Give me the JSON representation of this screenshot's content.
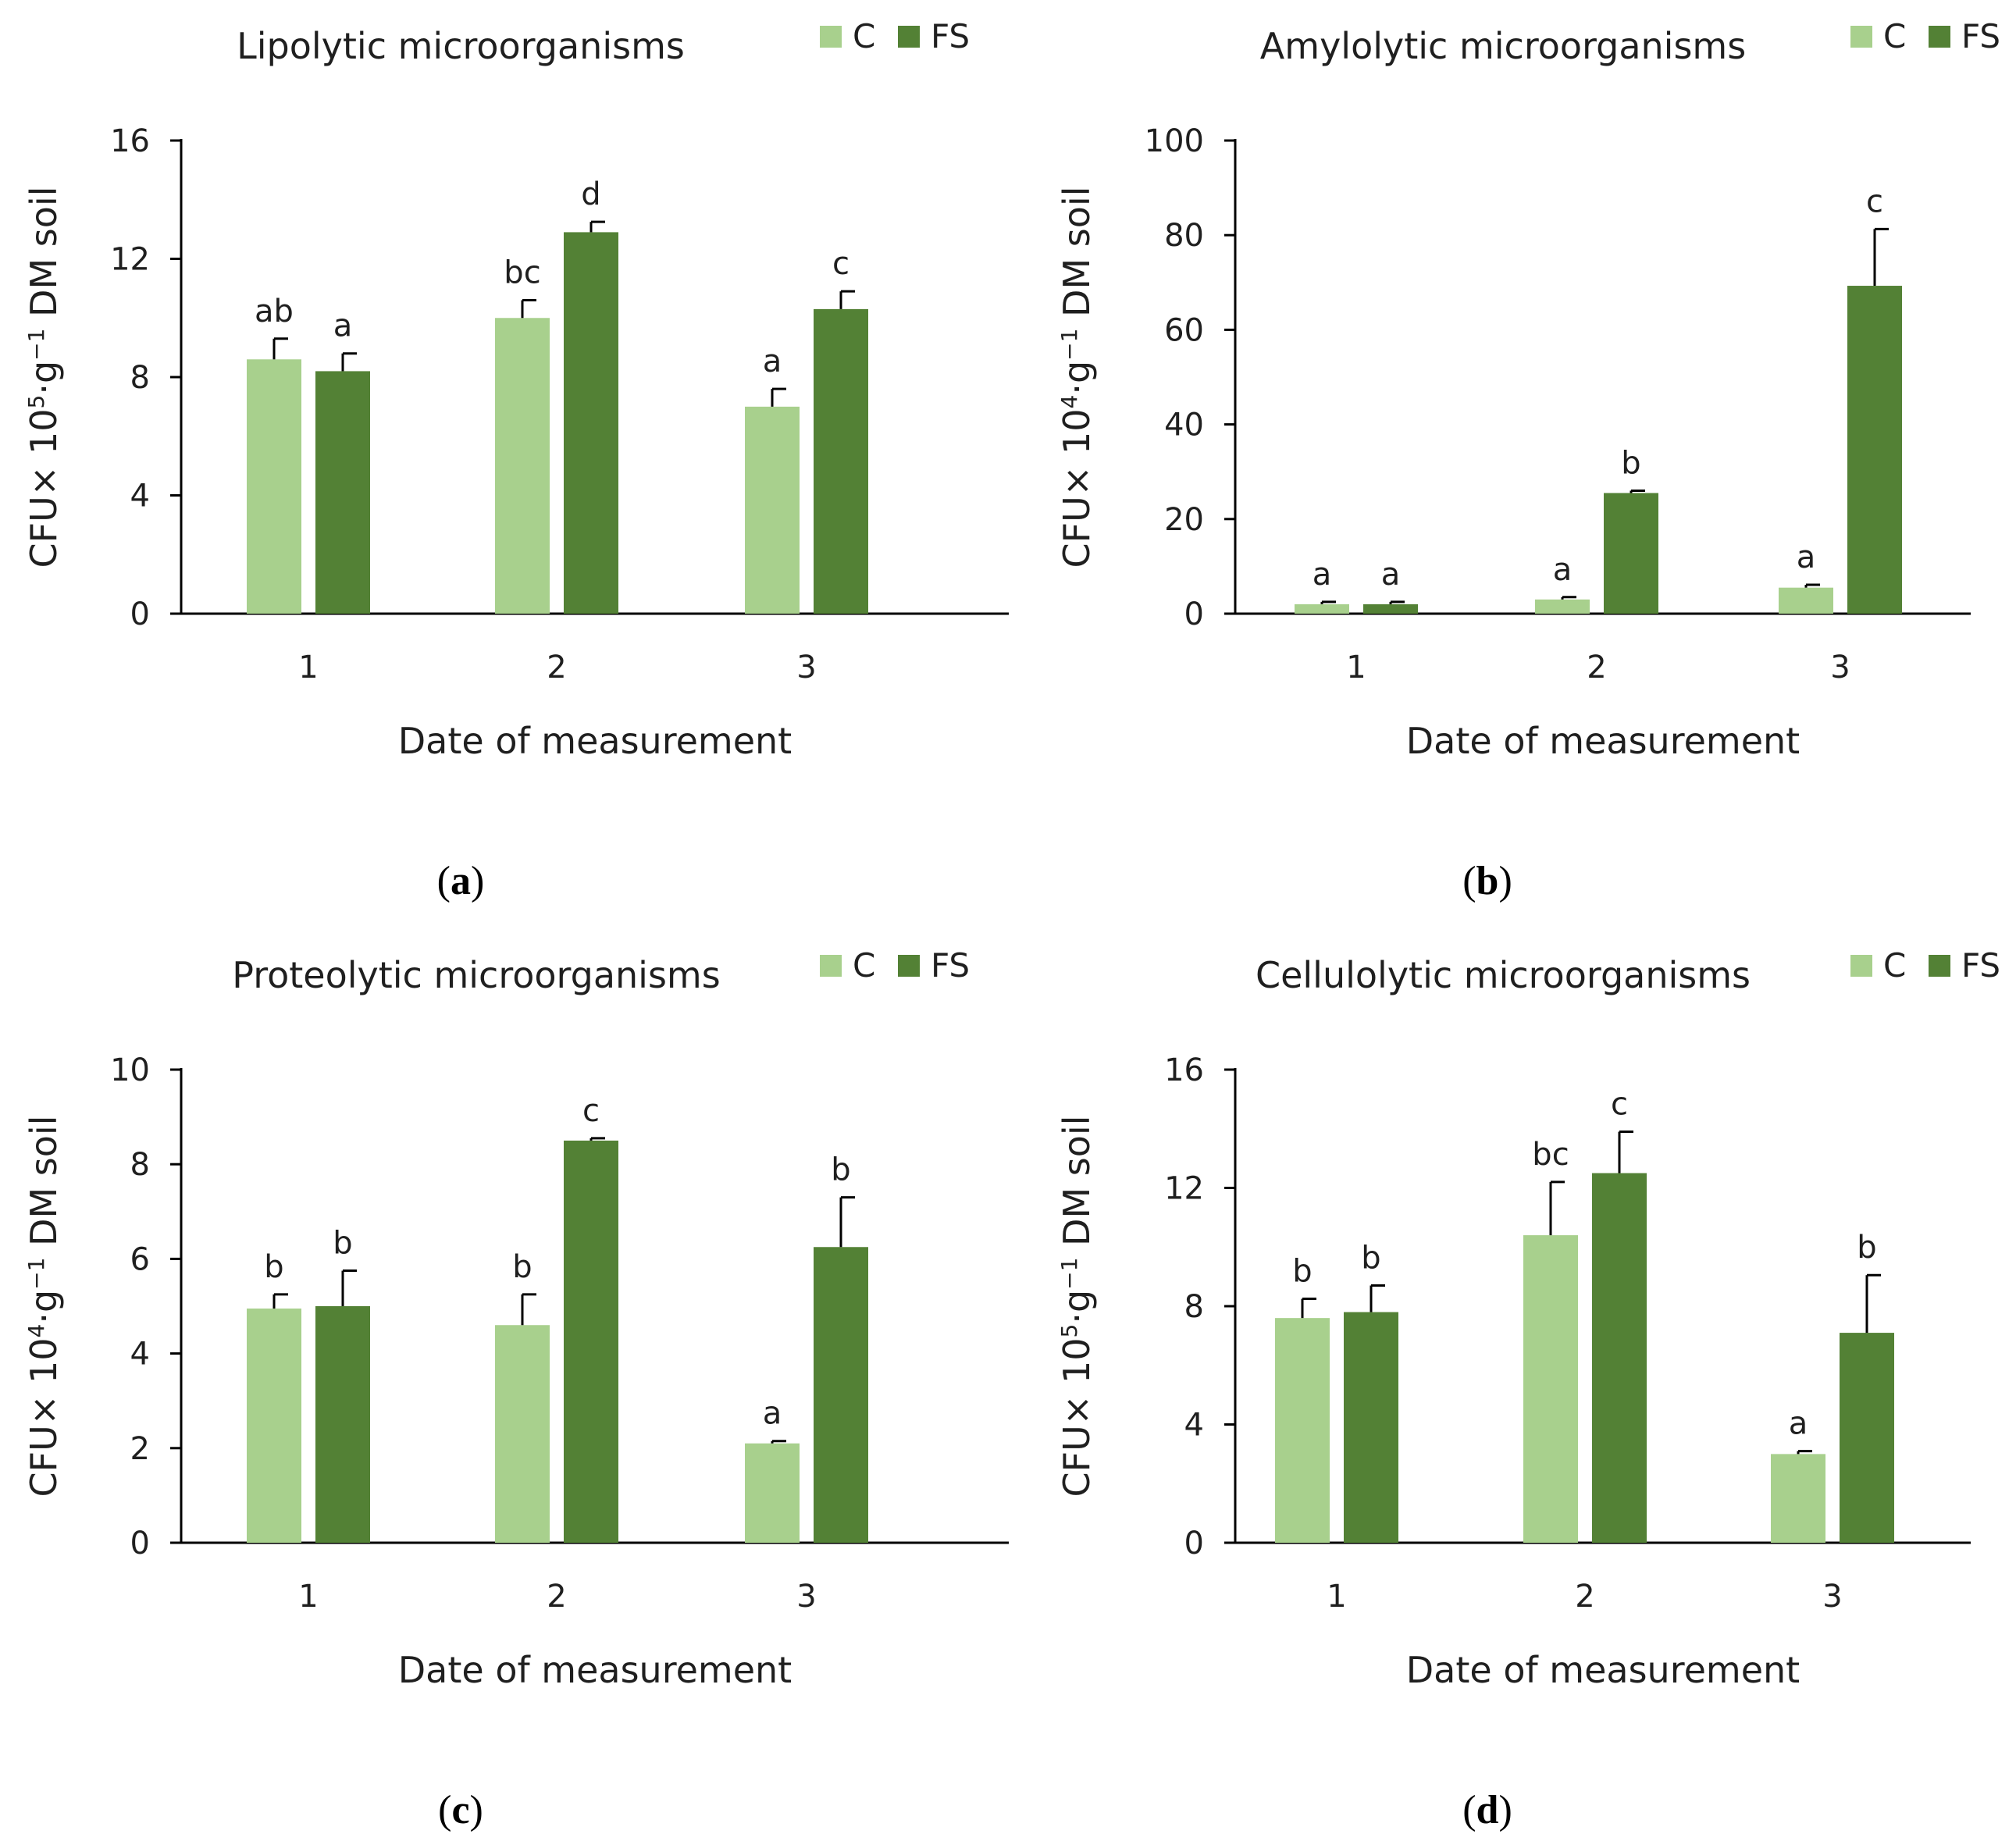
{
  "colors": {
    "C": "#a8d08d",
    "FS": "#538135"
  },
  "chart_data": [
    {
      "type": "bar",
      "panel": "a",
      "title": "Lipolytic microorganisms",
      "xlabel": "Date of measurement",
      "ylabel": {
        "pre": "CFU× 10",
        "exp": "5",
        "mid": "·g",
        "exp2": "−1",
        "post": " DM soil"
      },
      "ylim": [
        0,
        16
      ],
      "yticks": [
        "0",
        "4",
        "8",
        "12",
        "16"
      ],
      "ytick_values": [
        0,
        4,
        8,
        12,
        16
      ],
      "categories": [
        "1",
        "2",
        "3"
      ],
      "legend": [
        "C",
        "FS"
      ],
      "series": [
        {
          "name": "C",
          "values": [
            8.6,
            10.0,
            7.0
          ],
          "errors": [
            0.7,
            0.6,
            0.6
          ],
          "letters": [
            "ab",
            "bc",
            "a"
          ]
        },
        {
          "name": "FS",
          "values": [
            8.2,
            12.9,
            10.3
          ],
          "errors": [
            0.6,
            0.35,
            0.6
          ],
          "letters": [
            "a",
            "d",
            "c"
          ]
        }
      ],
      "panel_label": "a"
    },
    {
      "type": "bar",
      "panel": "b",
      "title": "Amylolytic microorganisms",
      "xlabel": "Date of measurement",
      "ylabel": {
        "pre": "CFU× 10",
        "exp": "4",
        "mid": "·g",
        "exp2": "−1",
        "post": " DM soil"
      },
      "ylim": [
        0,
        100
      ],
      "yticks": [
        "0",
        "20",
        "40",
        "60",
        "80",
        "100"
      ],
      "ytick_values": [
        0,
        20,
        40,
        60,
        80,
        100
      ],
      "categories": [
        "1",
        "2",
        "3"
      ],
      "legend": [
        "C",
        "FS"
      ],
      "series": [
        {
          "name": "C",
          "values": [
            2.0,
            3.0,
            5.5
          ],
          "errors": [
            0.5,
            0.5,
            0.6
          ],
          "letters": [
            "a",
            "a",
            "a"
          ]
        },
        {
          "name": "FS",
          "values": [
            2.0,
            25.5,
            69.3
          ],
          "errors": [
            0.5,
            0.5,
            12.0
          ],
          "letters": [
            "a",
            "b",
            "c"
          ]
        }
      ],
      "panel_label": "b"
    },
    {
      "type": "bar",
      "panel": "c",
      "title": "Proteolytic microorganisms",
      "xlabel": "Date of measurement",
      "ylabel": {
        "pre": "CFU× 10",
        "exp": "4",
        "mid": "·g",
        "exp2": "−1",
        "post": " DM soil"
      },
      "ylim": [
        0,
        10
      ],
      "yticks": [
        "0",
        "2",
        "4",
        "6",
        "8",
        "10"
      ],
      "ytick_values": [
        0,
        2,
        4,
        6,
        8,
        10
      ],
      "categories": [
        "1",
        "2",
        "3"
      ],
      "legend": [
        "C",
        "FS"
      ],
      "series": [
        {
          "name": "C",
          "values": [
            4.95,
            4.6,
            2.1
          ],
          "errors": [
            0.3,
            0.65,
            0.05
          ],
          "letters": [
            "b",
            "b",
            "a"
          ]
        },
        {
          "name": "FS",
          "values": [
            5.0,
            8.5,
            6.25
          ],
          "errors": [
            0.75,
            0.05,
            1.05
          ],
          "letters": [
            "b",
            "c",
            "b"
          ]
        }
      ],
      "panel_label": "c"
    },
    {
      "type": "bar",
      "panel": "d",
      "title": "Cellulolytic microorganisms",
      "xlabel": "Date of measurement",
      "ylabel": {
        "pre": "CFU× 10",
        "exp": "5",
        "mid": "·g",
        "exp2": "−1",
        "post": " DM soil"
      },
      "ylim": [
        0,
        16
      ],
      "yticks": [
        "0",
        "4",
        "8",
        "12",
        "16"
      ],
      "ytick_values": [
        0,
        4,
        8,
        12,
        16
      ],
      "categories": [
        "1",
        "2",
        "3"
      ],
      "legend": [
        "C",
        "FS"
      ],
      "series": [
        {
          "name": "C",
          "values": [
            7.6,
            10.4,
            3.0
          ],
          "errors": [
            0.65,
            1.8,
            0.1
          ],
          "letters": [
            "b",
            "bc",
            "a"
          ]
        },
        {
          "name": "FS",
          "values": [
            7.8,
            12.5,
            7.1
          ],
          "errors": [
            0.9,
            1.4,
            1.95
          ],
          "letters": [
            "b",
            "c",
            "b"
          ]
        }
      ],
      "panel_label": "d"
    }
  ]
}
